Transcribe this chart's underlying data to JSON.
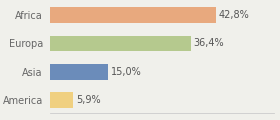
{
  "categories": [
    "Africa",
    "Europa",
    "Asia",
    "America"
  ],
  "values": [
    42.8,
    36.4,
    15.0,
    5.9
  ],
  "labels": [
    "42,8%",
    "36,4%",
    "15,0%",
    "5,9%"
  ],
  "bar_colors": [
    "#e8a97e",
    "#b5c98e",
    "#6b8cba",
    "#f0d080"
  ],
  "background_color": "#f0f0eb",
  "xlim": [
    0,
    58
  ],
  "label_fontsize": 7,
  "tick_fontsize": 7,
  "bar_height": 0.55
}
